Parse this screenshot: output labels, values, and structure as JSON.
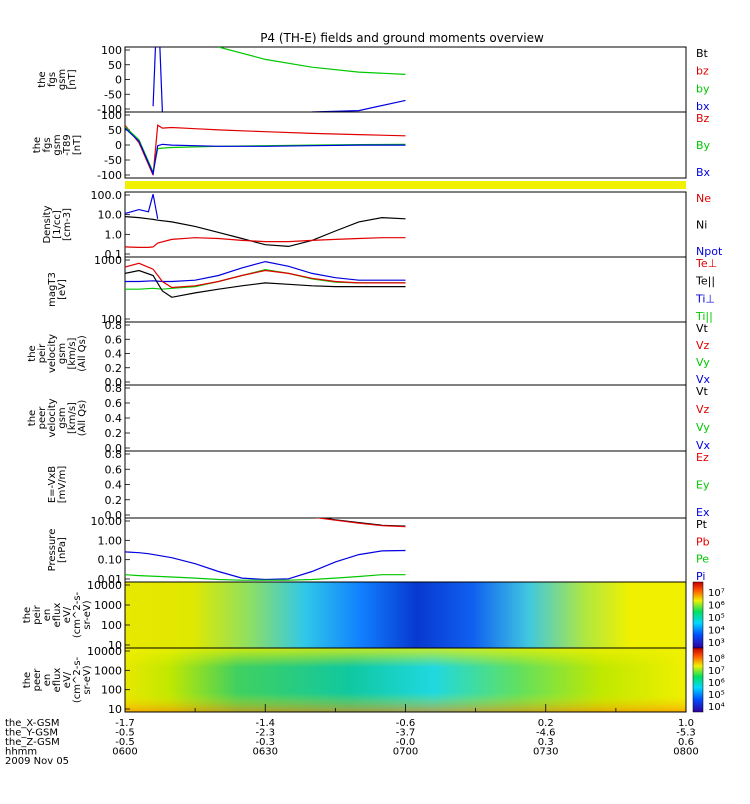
{
  "title": "P4 (TH-E) fields and ground moments overview",
  "colors": {
    "black": "#000000",
    "red": "#e00000",
    "green": "#00c800",
    "blue": "#0000e0",
    "yellow": "#f0f000"
  },
  "chart_data": [
    {
      "id": "fgs",
      "type": "line",
      "ylabel": [
        "the",
        "fgs",
        "gsm",
        "[nT]"
      ],
      "yticks": [
        "100",
        "50",
        "0",
        "-50",
        "-100"
      ],
      "ylim": [
        -120,
        105
      ],
      "legend": [
        {
          "label": "Bt",
          "color": "black"
        },
        {
          "label": "bz",
          "color": "red"
        },
        {
          "label": "by",
          "color": "green"
        },
        {
          "label": "bx",
          "color": "blue"
        }
      ],
      "x": [
        0,
        5,
        6,
        7,
        8,
        10,
        15,
        20,
        30,
        40,
        50,
        60
      ],
      "series": [
        {
          "name": "by",
          "color": "green",
          "values": [
            null,
            null,
            null,
            null,
            null,
            null,
            null,
            105,
            62,
            35,
            18,
            10
          ]
        },
        {
          "name": "bx",
          "color": "blue",
          "values": [
            null,
            null,
            -100,
            300,
            -120,
            null,
            null,
            null,
            null,
            -120,
            -115,
            -80
          ]
        }
      ]
    },
    {
      "id": "fgs_t89",
      "type": "line",
      "ylabel": [
        "the",
        "fgs",
        "gsm",
        "-T89",
        "[nT]"
      ],
      "yticks": [
        "100",
        "50",
        "0",
        "-50",
        "-100"
      ],
      "ylim": [
        -120,
        105
      ],
      "legend": [
        {
          "label": "Bz",
          "color": "red"
        },
        {
          "label": "By",
          "color": "green"
        },
        {
          "label": "Bx",
          "color": "blue"
        }
      ],
      "x": [
        0,
        3,
        6,
        7,
        8,
        10,
        15,
        20,
        30,
        40,
        50,
        60
      ],
      "series": [
        {
          "name": "Bz",
          "color": "red",
          "values": [
            60,
            0,
            -110,
            60,
            50,
            52,
            48,
            44,
            38,
            32,
            28,
            24
          ]
        },
        {
          "name": "By",
          "color": "green",
          "values": [
            55,
            10,
            -100,
            -20,
            -18,
            -16,
            -14,
            -12,
            -10,
            -8,
            -6,
            -5
          ]
        },
        {
          "name": "Bx",
          "color": "blue",
          "values": [
            50,
            5,
            -105,
            -10,
            -5,
            -8,
            -10,
            -12,
            -12,
            -10,
            -8,
            -8
          ]
        }
      ]
    },
    {
      "id": "flagbar",
      "type": "bar",
      "values": [
        1
      ]
    },
    {
      "id": "density",
      "type": "line",
      "scale": "log",
      "ylabel": [
        "Density",
        "[1/cc]",
        "[cm-3]"
      ],
      "yticks": [
        "100.0",
        "10.0",
        "1.0",
        "0.1"
      ],
      "ylim": [
        0.04,
        200
      ],
      "legend": [
        {
          "label": "Ne",
          "color": "red"
        },
        {
          "label": "Ni",
          "color": "black"
        },
        {
          "label": "Npot",
          "color": "blue"
        }
      ],
      "x": [
        0,
        3,
        5,
        6,
        7,
        10,
        15,
        20,
        25,
        30,
        35,
        40,
        45,
        50,
        55,
        60
      ],
      "series": [
        {
          "name": "Ni",
          "color": "black",
          "values": [
            8,
            7,
            6,
            5.5,
            5,
            4,
            2.2,
            1,
            0.45,
            0.2,
            0.16,
            0.35,
            1.2,
            4,
            7,
            6
          ]
        },
        {
          "name": "Ne",
          "color": "red",
          "values": [
            0.15,
            0.14,
            0.14,
            0.15,
            0.25,
            0.4,
            0.5,
            0.45,
            0.35,
            0.3,
            0.3,
            0.35,
            0.4,
            0.45,
            0.5,
            0.5
          ]
        },
        {
          "name": "Npot",
          "color": "blue",
          "values": [
            12,
            20,
            15,
            150,
            6,
            null,
            null,
            null,
            null,
            null,
            null,
            null,
            null,
            null,
            null,
            null
          ]
        }
      ]
    },
    {
      "id": "temp",
      "type": "line",
      "scale": "log",
      "ylabel": [
        "magT3",
        "[eV]"
      ],
      "yticks": [
        "1000",
        "100"
      ],
      "ylim": [
        100,
        1000
      ],
      "legend": [
        {
          "label": "Te⊥",
          "color": "red"
        },
        {
          "label": "Te||",
          "color": "black"
        },
        {
          "label": "Ti⊥",
          "color": "blue"
        },
        {
          "label": "Ti||",
          "color": "green"
        }
      ],
      "x": [
        0,
        3,
        6,
        8,
        10,
        15,
        20,
        25,
        30,
        35,
        40,
        45,
        50,
        55,
        60
      ],
      "series": [
        {
          "name": "Ti⊥",
          "color": "blue",
          "values": [
            420,
            420,
            430,
            420,
            420,
            440,
            520,
            680,
            850,
            720,
            560,
            480,
            440,
            440,
            440
          ]
        },
        {
          "name": "Ti||",
          "color": "green",
          "values": [
            320,
            320,
            330,
            320,
            330,
            350,
            420,
            520,
            640,
            560,
            460,
            410,
            400,
            400,
            400
          ]
        },
        {
          "name": "Te⊥",
          "color": "red",
          "values": [
            700,
            800,
            650,
            420,
            340,
            360,
            420,
            520,
            620,
            560,
            470,
            420,
            400,
            400,
            400
          ]
        },
        {
          "name": "Te||",
          "color": "black",
          "values": [
            560,
            620,
            520,
            300,
            240,
            280,
            320,
            360,
            400,
            380,
            360,
            350,
            350,
            350,
            350
          ]
        }
      ]
    },
    {
      "id": "peir_v",
      "type": "line",
      "ylabel": [
        "the",
        "peir",
        "velocity",
        "gsm",
        "[km/s]",
        "(All Qs)"
      ],
      "yticks": [
        "0.8",
        "0.6",
        "0.4",
        "0.2",
        "0.0"
      ],
      "legend": [
        {
          "label": "Vt",
          "color": "black"
        },
        {
          "label": "Vz",
          "color": "red"
        },
        {
          "label": "Vy",
          "color": "green"
        },
        {
          "label": "Vx",
          "color": "blue"
        }
      ]
    },
    {
      "id": "peer_v",
      "type": "line",
      "ylabel": [
        "the",
        "peer",
        "velocity",
        "gsm",
        "[km/s]",
        "(All Qs)"
      ],
      "yticks": [
        "0.8",
        "0.6",
        "0.4",
        "0.2",
        "0.0"
      ],
      "legend": [
        {
          "label": "Vt",
          "color": "black"
        },
        {
          "label": "Vz",
          "color": "red"
        },
        {
          "label": "Vy",
          "color": "green"
        },
        {
          "label": "Vx",
          "color": "blue"
        }
      ]
    },
    {
      "id": "efield",
      "type": "line",
      "ylabel": [
        "E=-VxB",
        "[mV/m]"
      ],
      "yticks": [
        "0.8",
        "0.6",
        "0.4",
        "0.2",
        "0.0"
      ],
      "legend": [
        {
          "label": "Ez",
          "color": "red"
        },
        {
          "label": "Ey",
          "color": "green"
        },
        {
          "label": "Ex",
          "color": "blue"
        }
      ]
    },
    {
      "id": "pressure",
      "type": "line",
      "scale": "log",
      "ylabel": [
        "Pressure",
        "[nPa]"
      ],
      "yticks": [
        "10.00",
        "1.00",
        "0.10",
        "0.01"
      ],
      "ylim": [
        0.008,
        25
      ],
      "legend": [
        {
          "label": "Pt",
          "color": "black"
        },
        {
          "label": "Pb",
          "color": "red"
        },
        {
          "label": "Pe",
          "color": "green"
        },
        {
          "label": "Pi",
          "color": "blue"
        }
      ],
      "x": [
        0,
        3,
        5,
        10,
        15,
        20,
        25,
        30,
        35,
        40,
        45,
        50,
        55,
        60
      ],
      "series": [
        {
          "name": "Pt",
          "color": "black",
          "values": [
            null,
            null,
            null,
            null,
            null,
            null,
            null,
            null,
            null,
            30,
            20,
            14,
            10,
            9
          ]
        },
        {
          "name": "Pb",
          "color": "red",
          "values": [
            null,
            null,
            null,
            null,
            null,
            null,
            null,
            null,
            null,
            28,
            19,
            13,
            9.5,
            8.5
          ]
        },
        {
          "name": "Pi",
          "color": "blue",
          "values": [
            0.35,
            0.32,
            0.28,
            0.17,
            0.08,
            0.03,
            0.013,
            0.011,
            0.012,
            0.03,
            0.1,
            0.25,
            0.4,
            0.42
          ]
        },
        {
          "name": "Pe",
          "color": "green",
          "values": [
            0.02,
            0.018,
            0.017,
            0.015,
            0.013,
            0.011,
            0.01,
            0.01,
            0.01,
            0.011,
            0.013,
            0.016,
            0.02,
            0.02
          ]
        }
      ]
    },
    {
      "id": "peir_en",
      "type": "heatmap",
      "ylabel": [
        "the",
        "peir",
        "en",
        "eflux",
        "eV/",
        "(cm^2-s-",
        "sr-eV)"
      ],
      "yticks": [
        "10000",
        "1000",
        "100",
        "10"
      ],
      "colorbar_ticks": [
        "10⁷",
        "10⁶",
        "10⁵",
        "10⁴",
        "10³"
      ]
    },
    {
      "id": "peer_en",
      "type": "heatmap",
      "ylabel": [
        "the",
        "peer",
        "en",
        "eflux",
        "eV/",
        "(cm^2-s-",
        "sr-eV)"
      ],
      "yticks": [
        "10000",
        "1000",
        "100",
        "10"
      ],
      "colorbar_ticks": [
        "10⁸",
        "10⁷",
        "10⁶",
        "10⁵",
        "10⁴"
      ]
    }
  ],
  "xaxis": {
    "rows": [
      {
        "label": "the_X-GSM",
        "values": [
          "-1.7",
          "-1.4",
          "-0.6",
          "0.2",
          "1.0"
        ]
      },
      {
        "label": "the_Y-GSM",
        "values": [
          "-0.5",
          "-2.3",
          "-3.7",
          "-4.6",
          "-5.3"
        ]
      },
      {
        "label": "the_Z-GSM",
        "values": [
          "-0.5",
          "-0.3",
          "-0.0",
          "0.3",
          "0.6"
        ]
      },
      {
        "label": "hhmm",
        "values": [
          "0600",
          "0630",
          "0700",
          "0730",
          "0800"
        ]
      }
    ],
    "date": "2009 Nov 05"
  }
}
